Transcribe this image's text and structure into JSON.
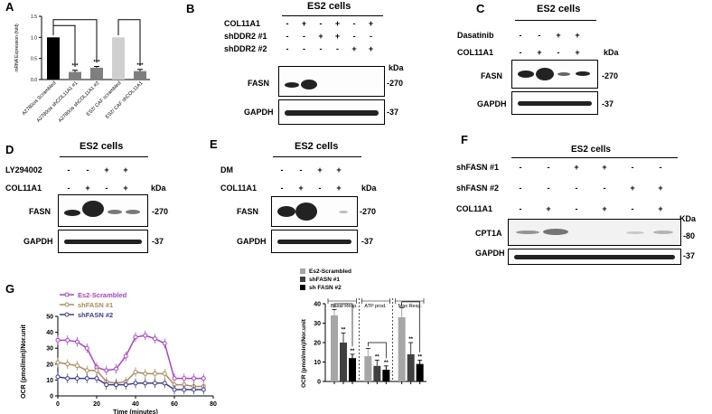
{
  "panels": {
    "A": {
      "letter": "A",
      "chart_data": {
        "type": "bar",
        "ylabel": "mRNA Expression (fold)",
        "categories": [
          "A2780cis Scrambled",
          "A2780cis shCOL11A1 #1",
          "A2780cis shCOL11A1 #2",
          "ES2/ CAF scrambled",
          "ES2/ CAF shCOL11A1"
        ],
        "values": [
          1.0,
          0.18,
          0.28,
          1.0,
          0.2
        ],
        "errors": [
          0.0,
          0.04,
          0.03,
          0.0,
          0.04
        ],
        "colors": [
          "#000000",
          "#7f7f7f",
          "#7f7f7f",
          "#cfcfcf",
          "#7f7f7f"
        ],
        "ylim": [
          0,
          1.5
        ],
        "yticks": [
          "0.0",
          "0.5",
          "1.0",
          "1.5"
        ],
        "significance": [
          "",
          "***",
          "***",
          "",
          "***"
        ]
      }
    },
    "B": {
      "letter": "B",
      "title": "ES2 cells",
      "rows": [
        {
          "label": "COL11A1",
          "signs": [
            "-",
            "+",
            "-",
            "+",
            "-",
            "+"
          ]
        },
        {
          "label": "shDDR2 #1",
          "signs": [
            "-",
            "-",
            "+",
            "+",
            "-",
            "-"
          ]
        },
        {
          "label": "shDDR2 #2",
          "signs": [
            "-",
            "-",
            "-",
            "-",
            "+",
            "+"
          ]
        }
      ],
      "kda": "kDa",
      "blots": [
        {
          "label": "FASN",
          "size": "-270"
        },
        {
          "label": "GAPDH",
          "size": "-37"
        }
      ]
    },
    "C": {
      "letter": "C",
      "title": "ES2 cells",
      "rows": [
        {
          "label": "Dasatinib",
          "signs": [
            "-",
            "-",
            "+",
            "+"
          ]
        },
        {
          "label": "COL11A1",
          "signs": [
            "-",
            "+",
            "-",
            "+"
          ]
        }
      ],
      "kda": "kDa",
      "blots": [
        {
          "label": "FASN",
          "size": "-270"
        },
        {
          "label": "GAPDH",
          "size": "-37"
        }
      ]
    },
    "D": {
      "letter": "D",
      "title": "ES2 cells",
      "rows": [
        {
          "label": "LY294002",
          "signs": [
            "-",
            "-",
            "+",
            "+"
          ]
        },
        {
          "label": "COL11A1",
          "signs": [
            "-",
            "+",
            "-",
            "+"
          ]
        }
      ],
      "kda": "kDa",
      "blots": [
        {
          "label": "FASN",
          "size": "-270"
        },
        {
          "label": "GAPDH",
          "size": "-37"
        }
      ]
    },
    "E": {
      "letter": "E",
      "title": "ES2 cells",
      "rows": [
        {
          "label": "DM",
          "signs": [
            "-",
            "-",
            "+",
            "+"
          ]
        },
        {
          "label": "COL11A1",
          "signs": [
            "-",
            "+",
            "-",
            "+"
          ]
        }
      ],
      "kda": "kDa",
      "blots": [
        {
          "label": "FASN",
          "size": "-270"
        },
        {
          "label": "GAPDH",
          "size": "-37"
        }
      ]
    },
    "F": {
      "letter": "F",
      "title": "ES2 cells",
      "rows": [
        {
          "label": "shFASN #1",
          "signs": [
            "-",
            "-",
            "+",
            "+",
            "-",
            "-"
          ]
        },
        {
          "label": "shFASN #2",
          "signs": [
            "-",
            "-",
            "-",
            "-",
            "+",
            "+"
          ]
        },
        {
          "label": "COL11A1",
          "signs": [
            "-",
            "+",
            "-",
            "+",
            "-",
            "+"
          ]
        }
      ],
      "kda": "KDa",
      "blots": [
        {
          "label": "CPT1A",
          "size": "-80"
        },
        {
          "label": "GAPDH",
          "size": "-37"
        }
      ]
    },
    "G": {
      "letter": "G",
      "line_chart": {
        "type": "line",
        "xlabel": "Time (minutes)",
        "ylabel": "OCR (pmol/min)/Nor.unit",
        "xlim": [
          0,
          80
        ],
        "ylim": [
          0,
          50
        ],
        "xticks": [
          "0",
          "20",
          "40",
          "60",
          "80"
        ],
        "yticks": [
          "0",
          "10",
          "20",
          "30",
          "40",
          "50"
        ],
        "x": [
          0,
          5,
          10,
          15,
          20,
          25,
          30,
          35,
          40,
          45,
          50,
          55,
          60,
          65,
          70,
          75
        ],
        "series": [
          {
            "name": "Es2-Scrambled",
            "color": "#b33ddb",
            "values": [
              35,
              35,
              34,
              30,
              18,
              16,
              17,
              25,
              37,
              38,
              36,
              33,
              11,
              11,
              11,
              11
            ]
          },
          {
            "name": "shFASN #1",
            "color": "#b08a54",
            "values": [
              21,
              20,
              19,
              16,
              16,
              9,
              8,
              9,
              15,
              14,
              14,
              14,
              7,
              7,
              6,
              6
            ]
          },
          {
            "name": "shFASN #2",
            "color": "#3b3b9e",
            "values": [
              12,
              11,
              11,
              11,
              11,
              7,
              7,
              7,
              8,
              8,
              8,
              8,
              4,
              4,
              4,
              4
            ]
          }
        ]
      },
      "bar_chart": {
        "type": "bar",
        "ylabel": "OCR (pmol/min)/Nor.unit",
        "ylim": [
          0,
          40
        ],
        "yticks": [
          "0",
          "10",
          "20",
          "30",
          "40"
        ],
        "groups": [
          "Basal Resp.",
          "ATP prod.",
          "Max Resp."
        ],
        "series": [
          {
            "name": "Es2-Scrambled",
            "color": "#a6a6a6",
            "values": [
              34,
              13,
              33
            ],
            "errors": [
              3,
              4,
              5
            ]
          },
          {
            "name": "shFASN #1",
            "color": "#404040",
            "values": [
              20,
              8,
              14
            ],
            "errors": [
              5,
              3,
              6
            ]
          },
          {
            "name": "sh FASN #2",
            "color": "#000000",
            "values": [
              12,
              6,
              9
            ],
            "errors": [
              2,
              2,
              2
            ]
          }
        ],
        "significance": "**"
      }
    }
  }
}
